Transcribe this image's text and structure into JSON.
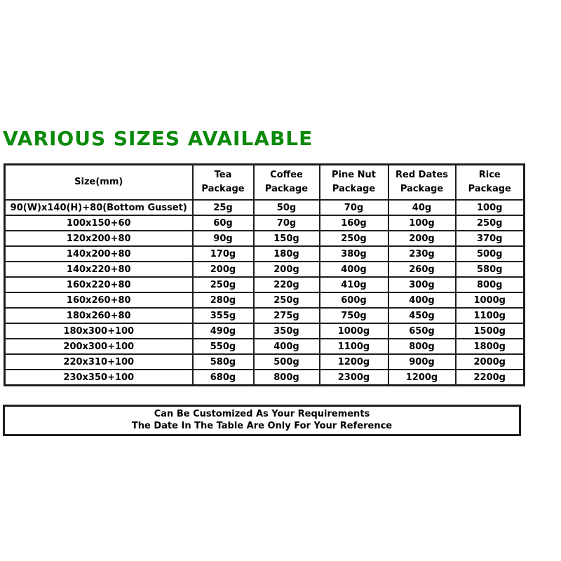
{
  "page": {
    "title": "VARIOUS SIZES AVAILABLE",
    "title_color": "#0b8a0b",
    "border_color": "#1e1e1e",
    "background_color": "#ffffff"
  },
  "table": {
    "columns": [
      "Size(mm)",
      "Tea Package",
      "Coffee\nPackage",
      "Pine Nut\nPackage",
      "Red Dates\nPackage",
      "Rice\nPackage"
    ],
    "rows": [
      [
        "90(W)x140(H)+80(Bottom Gusset)",
        "25g",
        "50g",
        "70g",
        "40g",
        "100g"
      ],
      [
        "100x150+60",
        "60g",
        "70g",
        "160g",
        "100g",
        "250g"
      ],
      [
        "120x200+80",
        "90g",
        "150g",
        "250g",
        "200g",
        "370g"
      ],
      [
        "140x200+80",
        "170g",
        "180g",
        "380g",
        "230g",
        "500g"
      ],
      [
        "140x220+80",
        "200g",
        "200g",
        "400g",
        "260g",
        "580g"
      ],
      [
        "160x220+80",
        "250g",
        "220g",
        "410g",
        "300g",
        "800g"
      ],
      [
        "160x260+80",
        "280g",
        "250g",
        "600g",
        "400g",
        "1000g"
      ],
      [
        "180x260+80",
        "355g",
        "275g",
        "750g",
        "450g",
        "1100g"
      ],
      [
        "180x300+100",
        "490g",
        "350g",
        "1000g",
        "650g",
        "1500g"
      ],
      [
        "200x300+100",
        "550g",
        "400g",
        "1100g",
        "800g",
        "1800g"
      ],
      [
        "220x310+100",
        "580g",
        "500g",
        "1200g",
        "900g",
        "2000g"
      ],
      [
        "230x350+100",
        "680g",
        "800g",
        "2300g",
        "1200g",
        "2200g"
      ]
    ],
    "footer_lines": [
      "Can Be Customized As Your Requirements",
      "The Date In The Table Are Only For Your Reference"
    ]
  }
}
